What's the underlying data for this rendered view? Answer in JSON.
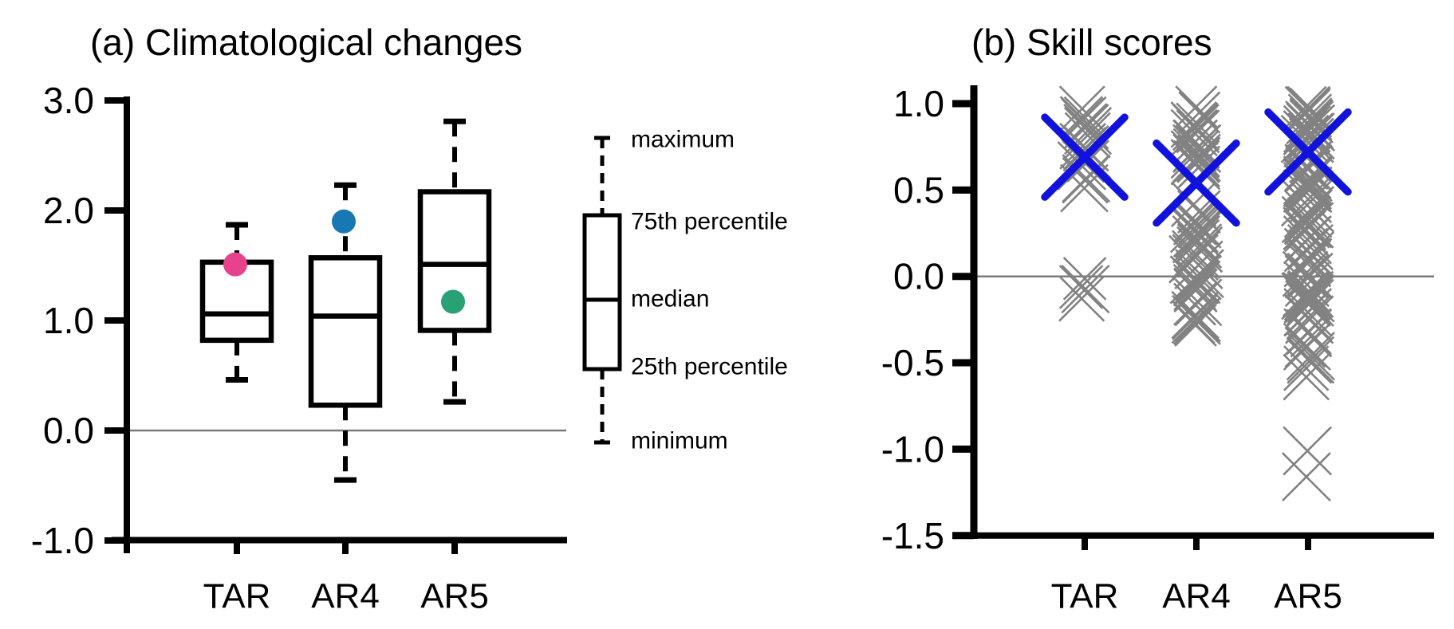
{
  "figure": {
    "background": "#ffffff",
    "panel_a_title": "(a) Climatological changes",
    "panel_b_title": "(b) Skill scores"
  },
  "chart_data": [
    {
      "id": "climatological-changes",
      "type": "box",
      "title": "(a) Climatological changes",
      "categories": [
        "TAR",
        "AR4",
        "AR5"
      ],
      "ylim": [
        -1.0,
        3.0
      ],
      "y_ticks": [
        {
          "value": 3.0,
          "label": "3.0"
        },
        {
          "value": 2.0,
          "label": "2.0"
        },
        {
          "value": 1.0,
          "label": "1.0"
        },
        {
          "value": 0.0,
          "label": "0.0"
        },
        {
          "value": -1.0,
          "label": "-1.0"
        }
      ],
      "zero_line": true,
      "boxes": [
        {
          "category": "TAR",
          "min": 0.46,
          "q1": 0.82,
          "median": 1.06,
          "q3": 1.53,
          "max": 1.87,
          "dot": {
            "value": 1.51,
            "color": "#e8428c",
            "name": "pink-dot"
          }
        },
        {
          "category": "AR4",
          "min": -0.45,
          "q1": 0.23,
          "median": 1.04,
          "q3": 1.57,
          "max": 2.23,
          "dot": {
            "value": 1.9,
            "color": "#1878b4",
            "name": "blue-dot"
          }
        },
        {
          "category": "AR5",
          "min": 0.26,
          "q1": 0.91,
          "median": 1.51,
          "q3": 2.17,
          "max": 2.81,
          "dot": {
            "value": 1.17,
            "color": "#28a275",
            "name": "green-dot"
          }
        }
      ],
      "legend": {
        "labels": [
          "maximum",
          "75th percentile",
          "median",
          "25th percentile",
          "minimum"
        ]
      }
    },
    {
      "id": "skill-scores",
      "type": "scatter",
      "title": "(b) Skill scores",
      "categories": [
        "TAR",
        "AR4",
        "AR5"
      ],
      "ylim": [
        -1.5,
        1.0
      ],
      "y_ticks": [
        {
          "value": 1.0,
          "label": "1.0"
        },
        {
          "value": 0.5,
          "label": "0.5"
        },
        {
          "value": 0.0,
          "label": "0.0"
        },
        {
          "value": -0.5,
          "label": "-0.5"
        },
        {
          "value": -1.0,
          "label": "-1.0"
        },
        {
          "value": -1.5,
          "label": "-1.5"
        }
      ],
      "zero_line": true,
      "marker": "x",
      "colors": {
        "model": "#828282",
        "ensemble_mean": "#1212dd"
      },
      "series": [
        {
          "category": "TAR",
          "ensemble_mean": 0.69,
          "clusters": [
            {
              "from": 0.45,
              "to": 1.0,
              "count": 20
            },
            {
              "from": -0.16,
              "to": 0.0,
              "count": 4
            }
          ],
          "outliers": []
        },
        {
          "category": "AR4",
          "ensemble_mean": 0.54,
          "clusters": [
            {
              "from": -0.29,
              "to": 1.0,
              "count": 55
            }
          ],
          "outliers": []
        },
        {
          "category": "AR5",
          "ensemble_mean": 0.72,
          "clusters": [
            {
              "from": -0.62,
              "to": 1.0,
              "count": 90
            }
          ],
          "outliers": [
            -1.01,
            -1.16
          ]
        }
      ]
    }
  ]
}
